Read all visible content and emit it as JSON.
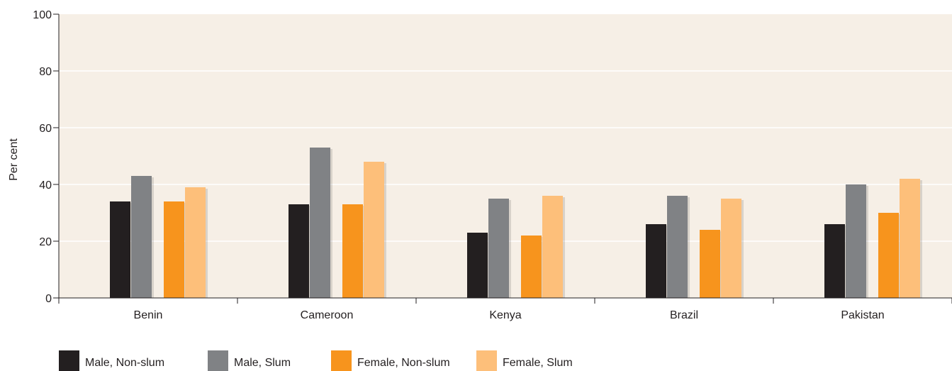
{
  "chart_data": {
    "type": "bar",
    "title": "",
    "xlabel": "",
    "ylabel": "Per cent",
    "ylim": [
      0,
      100
    ],
    "yticks": [
      0,
      20,
      40,
      60,
      80,
      100
    ],
    "grid": true,
    "legend_position": "bottom-left",
    "categories": [
      "Benin",
      "Cameroon",
      "Kenya",
      "Brazil",
      "Pakistan"
    ],
    "series": [
      {
        "name": "Male, Non-slum",
        "color": "#231f20",
        "values": [
          34,
          33,
          23,
          26,
          26
        ]
      },
      {
        "name": "Male, Slum",
        "color": "#808285",
        "values": [
          43,
          53,
          35,
          36,
          40
        ]
      },
      {
        "name": "Female, Non-slum",
        "color": "#f7941d",
        "values": [
          34,
          33,
          22,
          24,
          30
        ]
      },
      {
        "name": "Female, Slum",
        "color": "#fdbf7a",
        "values": [
          39,
          48,
          36,
          35,
          42
        ]
      }
    ],
    "colors": {
      "plot_background": "#f6efe6",
      "gridline": "#ffffff",
      "axis": "#231f20"
    }
  }
}
